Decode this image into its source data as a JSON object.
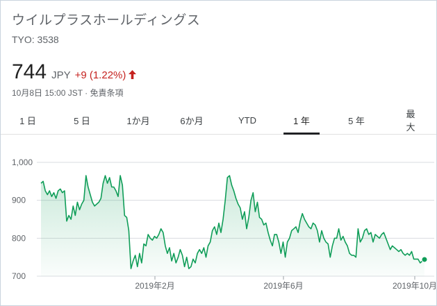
{
  "quote": {
    "company_name": "ウイルプラスホールディングス",
    "ticker": "TYO: 3538",
    "price": "744",
    "currency": "JPY",
    "change": "+9 (1.22%)",
    "timestamp": "10月8日 15:00 JST · 免責条項",
    "up_icon": "arrow-up-icon"
  },
  "tabs": [
    {
      "label": "1 日"
    },
    {
      "label": "5 日"
    },
    {
      "label": "1か月"
    },
    {
      "label": "6か月"
    },
    {
      "label": "YTD"
    },
    {
      "label": "1 年",
      "active": true
    },
    {
      "label": "5 年"
    },
    {
      "label": "最大"
    }
  ],
  "colors": {
    "line": "#0f9d58",
    "negative": "#c5221f",
    "gridline": "#dadce0"
  },
  "chart_data": {
    "type": "area",
    "ylim": [
      700,
      1000
    ],
    "yticks": [
      "1,000",
      "900",
      "800",
      "700"
    ],
    "xticks": [
      "2019年2月",
      "2019年6月",
      "2019年10月"
    ],
    "series": [
      {
        "values": [
          945,
          950,
          925,
          915,
          925,
          910,
          920,
          905,
          925,
          930,
          920,
          925,
          845,
          860,
          850,
          885,
          860,
          895,
          875,
          890,
          900,
          965,
          935,
          915,
          895,
          885,
          890,
          895,
          905,
          945,
          965,
          945,
          960,
          935,
          935,
          925,
          910,
          965,
          940,
          860,
          855,
          820,
          720,
          740,
          755,
          725,
          760,
          735,
          785,
          780,
          810,
          800,
          795,
          805,
          800,
          810,
          825,
          815,
          780,
          760,
          775,
          740,
          760,
          735,
          750,
          770,
          755,
          725,
          750,
          720,
          725,
          745,
          735,
          760,
          770,
          760,
          775,
          750,
          780,
          790,
          820,
          830,
          810,
          840,
          815,
          850,
          900,
          960,
          965,
          940,
          925,
          905,
          890,
          880,
          850,
          870,
          825,
          855,
          900,
          920,
          870,
          895,
          855,
          850,
          835,
          840,
          815,
          795,
          780,
          810,
          810,
          790,
          760,
          790,
          750,
          790,
          800,
          820,
          825,
          830,
          815,
          845,
          865,
          850,
          840,
          830,
          825,
          840,
          835,
          820,
          790,
          820,
          800,
          790,
          785,
          750,
          780,
          800,
          800,
          825,
          795,
          805,
          790,
          780,
          760,
          755,
          755,
          750,
          825,
          790,
          800,
          820,
          825,
          810,
          815,
          790,
          810,
          805,
          800,
          810,
          815,
          800,
          785,
          770,
          780,
          775,
          770,
          765,
          770,
          760,
          755,
          760,
          755,
          765,
          745,
          745,
          745,
          735,
          740,
          744
        ]
      }
    ]
  }
}
